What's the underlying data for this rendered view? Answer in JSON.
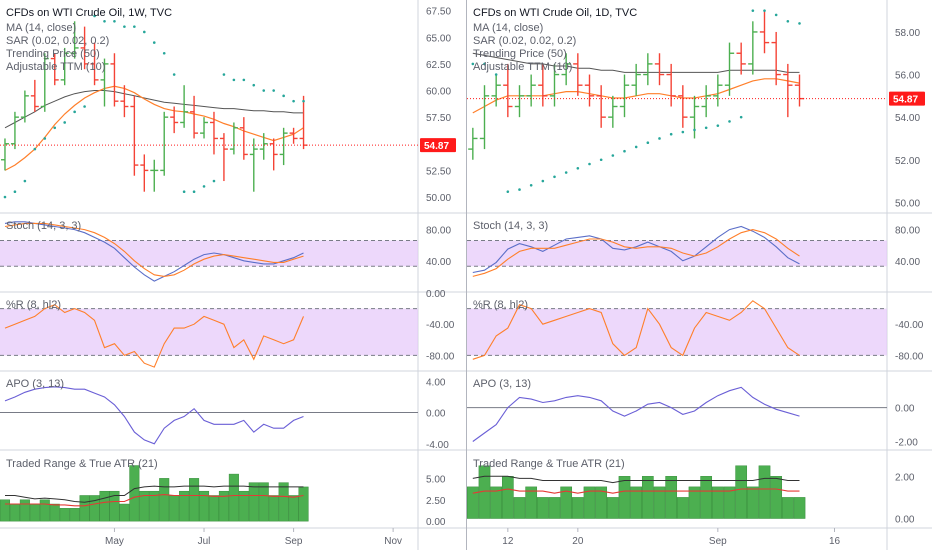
{
  "colors": {
    "up": "#4caf50",
    "down": "#f44336",
    "ma": "#ff7f2a",
    "trend": "#555555",
    "sar": "#26a69a",
    "stoch_k": "#5b6ec8",
    "stoch_d": "#ff7f2a",
    "band_fill": "#e6c8fa",
    "willr": "#ff7f2a",
    "apo": "#6a5fd6",
    "atr_bar": "#4caf50",
    "atr_line": "#e53935",
    "range_line": "#333333",
    "price_tag": "#ff1a1a",
    "grid": "#e0e3eb"
  },
  "current_price": "54.87",
  "chart_data": [
    {
      "type": "candlestick",
      "title": "CFDs on WTI Crude Oil, 1W, TVC",
      "legend": [
        "MA (14, close)",
        "SAR (0.02, 0.02, 0.2)",
        "Trending Price (50)",
        "Adjustable TTM (10)"
      ],
      "x_ticks": [
        {
          "label": "May",
          "i": 11
        },
        {
          "label": "Jul",
          "i": 20
        },
        {
          "label": "Sep",
          "i": 29
        },
        {
          "label": "Nov",
          "i": 39
        }
      ],
      "n_slots": 42,
      "price_ylim": [
        48.5,
        68.5
      ],
      "price_ticks": [
        "67.50",
        "65.00",
        "62.50",
        "60.00",
        "57.50",
        "55.00",
        "52.50",
        "50.00"
      ],
      "candles": [
        {
          "o": 53.5,
          "h": 55.5,
          "l": 52.5,
          "c": 55.0
        },
        {
          "o": 55.0,
          "h": 58.0,
          "l": 54.5,
          "c": 57.5
        },
        {
          "o": 57.5,
          "h": 60.0,
          "l": 57.0,
          "c": 59.5
        },
        {
          "o": 59.5,
          "h": 61.0,
          "l": 58.0,
          "c": 58.5
        },
        {
          "o": 58.5,
          "h": 63.5,
          "l": 58.0,
          "c": 63.0
        },
        {
          "o": 63.0,
          "h": 63.5,
          "l": 60.5,
          "c": 61.0
        },
        {
          "o": 61.0,
          "h": 64.0,
          "l": 60.5,
          "c": 63.5
        },
        {
          "o": 63.5,
          "h": 66.5,
          "l": 63.0,
          "c": 64.0
        },
        {
          "o": 64.0,
          "h": 66.0,
          "l": 62.0,
          "c": 62.5
        },
        {
          "o": 62.5,
          "h": 64.5,
          "l": 60.5,
          "c": 61.0
        },
        {
          "o": 61.0,
          "h": 63.0,
          "l": 58.5,
          "c": 62.5
        },
        {
          "o": 62.5,
          "h": 63.5,
          "l": 58.5,
          "c": 59.0
        },
        {
          "o": 59.0,
          "h": 60.5,
          "l": 57.5,
          "c": 58.5
        },
        {
          "o": 58.5,
          "h": 59.5,
          "l": 52.0,
          "c": 53.0
        },
        {
          "o": 53.0,
          "h": 54.0,
          "l": 50.5,
          "c": 52.5
        },
        {
          "o": 52.5,
          "h": 53.5,
          "l": 50.5,
          "c": 52.5
        },
        {
          "o": 52.5,
          "h": 58.0,
          "l": 52.0,
          "c": 57.5
        },
        {
          "o": 57.5,
          "h": 58.5,
          "l": 56.0,
          "c": 57.0
        },
        {
          "o": 57.0,
          "h": 60.5,
          "l": 56.5,
          "c": 58.0
        },
        {
          "o": 58.0,
          "h": 59.5,
          "l": 55.5,
          "c": 56.0
        },
        {
          "o": 56.0,
          "h": 57.5,
          "l": 55.5,
          "c": 57.0
        },
        {
          "o": 57.0,
          "h": 58.0,
          "l": 54.0,
          "c": 55.5
        },
        {
          "o": 55.5,
          "h": 56.0,
          "l": 51.5,
          "c": 54.5
        },
        {
          "o": 54.5,
          "h": 57.0,
          "l": 54.0,
          "c": 56.5
        },
        {
          "o": 56.5,
          "h": 57.5,
          "l": 53.5,
          "c": 54.0
        },
        {
          "o": 54.0,
          "h": 55.5,
          "l": 50.5,
          "c": 54.5
        },
        {
          "o": 54.5,
          "h": 56.0,
          "l": 53.5,
          "c": 55.0
        },
        {
          "o": 55.0,
          "h": 55.5,
          "l": 52.5,
          "c": 54.0
        },
        {
          "o": 54.0,
          "h": 56.5,
          "l": 53.0,
          "c": 56.0
        },
        {
          "o": 56.0,
          "h": 56.5,
          "l": 55.0,
          "c": 55.5
        },
        {
          "o": 55.5,
          "h": 59.5,
          "l": 54.5,
          "c": 54.87
        }
      ],
      "ma": [
        52.5,
        53.0,
        53.7,
        54.5,
        55.6,
        56.8,
        57.8,
        58.6,
        59.3,
        59.8,
        60.2,
        60.4,
        60.2,
        59.8,
        59.2,
        58.7,
        58.3,
        58.1,
        58.0,
        57.8,
        57.6,
        57.3,
        56.9,
        56.6,
        56.2,
        55.9,
        55.6,
        55.3,
        55.6,
        55.9,
        56.5
      ],
      "trend": [
        56.5,
        57.0,
        57.5,
        58.0,
        58.6,
        59.0,
        59.4,
        59.7,
        59.9,
        60.0,
        60.0,
        59.9,
        59.7,
        59.5,
        59.3,
        59.1,
        58.9,
        58.8,
        58.7,
        58.6,
        58.5,
        58.4,
        58.3,
        58.3,
        58.2,
        58.1,
        58.1,
        58.0,
        58.0,
        57.9,
        57.9
      ],
      "sar": [
        50.0,
        50.5,
        51.5,
        54.5,
        55.5,
        56.5,
        57.0,
        58.0,
        58.5,
        67.0,
        66.5,
        66.5,
        66.0,
        66.0,
        65.5,
        64.5,
        63.5,
        61.5,
        50.5,
        50.5,
        51.0,
        51.5,
        61.5,
        61.0,
        61.0,
        60.5,
        60.0,
        60.0,
        59.5,
        59.0,
        59.0
      ],
      "stoch_title": "Stoch (14, 3, 3)",
      "stoch_ylim": [
        0,
        100
      ],
      "stoch_ticks": [
        "80.00",
        "40.00"
      ],
      "stoch_band": [
        33,
        66
      ],
      "stoch_k": [
        88,
        90,
        90,
        88,
        86,
        84,
        82,
        80,
        76,
        70,
        64,
        56,
        44,
        32,
        22,
        14,
        20,
        26,
        34,
        42,
        48,
        50,
        48,
        44,
        40,
        38,
        36,
        36,
        40,
        44,
        50
      ],
      "stoch_d": [
        84,
        86,
        88,
        88,
        88,
        86,
        84,
        82,
        80,
        76,
        70,
        62,
        52,
        40,
        30,
        22,
        20,
        22,
        28,
        36,
        42,
        46,
        48,
        46,
        44,
        42,
        40,
        38,
        38,
        42,
        46
      ],
      "willr_title": "%R (8, hl2)",
      "willr_ylim": [
        -100,
        0
      ],
      "willr_ticks": [
        "0.00",
        "-40.00",
        "-80.00"
      ],
      "willr_band": [
        -80,
        -20
      ],
      "willr": [
        -45,
        -40,
        -35,
        -30,
        -20,
        -15,
        -25,
        -20,
        -25,
        -35,
        -70,
        -65,
        -80,
        -75,
        -90,
        -95,
        -65,
        -45,
        -45,
        -40,
        -30,
        -35,
        -40,
        -70,
        -60,
        -85,
        -55,
        -60,
        -65,
        -60,
        -30
      ],
      "apo_title": "APO (3, 13)",
      "apo_ylim": [
        -4.8,
        5.2
      ],
      "apo_ticks": [
        "4.00",
        "0.00",
        "-4.00"
      ],
      "apo_zero": 0,
      "apo": [
        1.5,
        2.0,
        2.6,
        3.0,
        3.2,
        3.3,
        3.2,
        3.0,
        3.0,
        2.5,
        2.0,
        1.0,
        -0.5,
        -2.5,
        -3.5,
        -4.0,
        -2.0,
        -1.0,
        -0.5,
        0.5,
        -1.0,
        -1.5,
        -1.5,
        -1.5,
        -1.0,
        -2.5,
        -1.5,
        -2.0,
        -2.0,
        -1.0,
        -0.5
      ],
      "atr_title": "Traded Range & True ATR (21)",
      "atr_ylim": [
        -0.8,
        8.2
      ],
      "atr_ticks": [
        "5.00",
        "2.50",
        "0.00"
      ],
      "atr_bars": [
        2.5,
        2.0,
        2.5,
        2.0,
        2.5,
        2.0,
        1.5,
        1.5,
        3.0,
        3.0,
        3.5,
        3.5,
        2.0,
        6.5,
        3.5,
        3.5,
        5.0,
        3.0,
        3.5,
        5.0,
        3.5,
        3.0,
        3.5,
        5.5,
        3.5,
        4.5,
        4.5,
        3.0,
        4.5,
        3.0,
        4.0
      ],
      "range_line": [
        3.0,
        3.0,
        2.8,
        2.6,
        2.7,
        2.6,
        2.5,
        2.3,
        2.2,
        2.4,
        2.7,
        3.0,
        3.0,
        3.8,
        4.0,
        4.1,
        4.0,
        4.0,
        4.1,
        4.1,
        4.1,
        4.0,
        4.1,
        4.1,
        4.1,
        4.0,
        4.0,
        4.0,
        4.0,
        4.0,
        4.0
      ],
      "atr_line": [
        2.0,
        2.0,
        2.0,
        2.0,
        2.0,
        1.9,
        1.9,
        1.8,
        1.8,
        2.0,
        2.2,
        2.3,
        2.3,
        2.8,
        3.0,
        3.0,
        3.1,
        3.0,
        3.0,
        3.0,
        3.0,
        2.9,
        2.9,
        3.0,
        3.0,
        3.0,
        3.0,
        2.9,
        2.9,
        2.8,
        3.0
      ]
    },
    {
      "type": "candlestick",
      "title": "CFDs on WTI Crude Oil, 1D, TVC",
      "legend": [
        "MA (14, close)",
        "SAR (0.02, 0.02, 0.2)",
        "Trending Price (50)",
        "Adjustable TTM (10)"
      ],
      "x_ticks": [
        {
          "label": "12",
          "i": 3
        },
        {
          "label": "20",
          "i": 9
        },
        {
          "label": "Sep",
          "i": 21
        },
        {
          "label": "16",
          "i": 31
        }
      ],
      "n_slots": 36,
      "price_ylim": [
        49.5,
        59.5
      ],
      "price_ticks": [
        "58.00",
        "56.00",
        "54.00",
        "52.00",
        "50.00"
      ],
      "candles": [
        {
          "o": 52.5,
          "h": 53.5,
          "l": 52.0,
          "c": 53.0
        },
        {
          "o": 53.0,
          "h": 55.5,
          "l": 52.5,
          "c": 55.0
        },
        {
          "o": 55.0,
          "h": 56.0,
          "l": 54.5,
          "c": 55.5
        },
        {
          "o": 55.5,
          "h": 56.5,
          "l": 54.0,
          "c": 54.5
        },
        {
          "o": 54.5,
          "h": 55.5,
          "l": 54.0,
          "c": 55.0
        },
        {
          "o": 55.0,
          "h": 56.0,
          "l": 54.5,
          "c": 55.5
        },
        {
          "o": 55.5,
          "h": 56.5,
          "l": 54.5,
          "c": 55.0
        },
        {
          "o": 55.0,
          "h": 56.5,
          "l": 54.5,
          "c": 56.0
        },
        {
          "o": 56.0,
          "h": 57.0,
          "l": 55.5,
          "c": 56.5
        },
        {
          "o": 56.5,
          "h": 57.0,
          "l": 55.0,
          "c": 55.5
        },
        {
          "o": 55.5,
          "h": 56.0,
          "l": 54.5,
          "c": 55.0
        },
        {
          "o": 55.0,
          "h": 55.5,
          "l": 53.5,
          "c": 54.0
        },
        {
          "o": 54.0,
          "h": 55.0,
          "l": 53.5,
          "c": 54.5
        },
        {
          "o": 54.5,
          "h": 56.0,
          "l": 54.0,
          "c": 55.5
        },
        {
          "o": 55.5,
          "h": 56.5,
          "l": 55.0,
          "c": 56.0
        },
        {
          "o": 56.0,
          "h": 57.0,
          "l": 55.5,
          "c": 56.5
        },
        {
          "o": 56.5,
          "h": 57.0,
          "l": 55.5,
          "c": 56.0
        },
        {
          "o": 56.0,
          "h": 56.5,
          "l": 54.5,
          "c": 55.0
        },
        {
          "o": 55.0,
          "h": 55.5,
          "l": 53.5,
          "c": 54.0
        },
        {
          "o": 54.0,
          "h": 55.0,
          "l": 53.0,
          "c": 54.5
        },
        {
          "o": 54.5,
          "h": 55.5,
          "l": 54.0,
          "c": 55.0
        },
        {
          "o": 55.0,
          "h": 56.0,
          "l": 54.5,
          "c": 55.5
        },
        {
          "o": 55.5,
          "h": 57.5,
          "l": 55.0,
          "c": 57.0
        },
        {
          "o": 57.0,
          "h": 57.5,
          "l": 56.0,
          "c": 56.5
        },
        {
          "o": 56.5,
          "h": 58.5,
          "l": 56.0,
          "c": 58.0
        },
        {
          "o": 58.0,
          "h": 59.0,
          "l": 57.0,
          "c": 57.5
        },
        {
          "o": 57.5,
          "h": 58.0,
          "l": 55.5,
          "c": 56.0
        },
        {
          "o": 56.0,
          "h": 56.5,
          "l": 54.0,
          "c": 55.5
        },
        {
          "o": 55.5,
          "h": 56.0,
          "l": 54.5,
          "c": 54.87
        }
      ],
      "ma": [
        54.2,
        54.5,
        54.8,
        55.0,
        55.0,
        55.0,
        55.0,
        55.1,
        55.2,
        55.2,
        55.1,
        55.0,
        54.9,
        54.9,
        55.0,
        55.1,
        55.1,
        55.0,
        54.9,
        54.9,
        55.0,
        55.1,
        55.3,
        55.5,
        55.7,
        55.8,
        55.8,
        55.7,
        55.6
      ],
      "trend": [
        57.0,
        56.9,
        56.8,
        56.7,
        56.6,
        56.5,
        56.5,
        56.4,
        56.4,
        56.3,
        56.3,
        56.2,
        56.2,
        56.1,
        56.1,
        56.1,
        56.1,
        56.1,
        56.1,
        56.1,
        56.1,
        56.1,
        56.2,
        56.2,
        56.2,
        56.2,
        56.2,
        56.1,
        56.1
      ],
      "sar": [
        56.5,
        56.5,
        56.0,
        50.5,
        50.6,
        50.8,
        51.0,
        51.2,
        51.4,
        51.6,
        51.8,
        52.0,
        52.2,
        52.4,
        52.6,
        52.8,
        53.0,
        53.2,
        53.3,
        53.4,
        53.5,
        53.6,
        53.8,
        54.0,
        59.0,
        59.0,
        58.8,
        58.5,
        58.4
      ],
      "stoch_title": "Stoch (14, 3, 3)",
      "stoch_ylim": [
        0,
        100
      ],
      "stoch_ticks": [
        "80.00",
        "40.00"
      ],
      "stoch_band": [
        33,
        66
      ],
      "stoch_k": [
        25,
        28,
        38,
        55,
        62,
        58,
        52,
        60,
        68,
        70,
        72,
        68,
        56,
        54,
        58,
        64,
        58,
        52,
        40,
        46,
        58,
        70,
        80,
        84,
        78,
        70,
        58,
        44,
        36
      ],
      "stoch_d": [
        20,
        24,
        30,
        42,
        52,
        56,
        56,
        56,
        60,
        64,
        68,
        68,
        64,
        58,
        56,
        58,
        58,
        56,
        50,
        46,
        50,
        58,
        68,
        76,
        80,
        76,
        68,
        56,
        46
      ],
      "willr_title": "%R (8, hl2)",
      "willr_ylim": [
        -100,
        0
      ],
      "willr_ticks": [
        "-40.00",
        "-80.00"
      ],
      "willr_band": [
        -80,
        -20
      ],
      "willr": [
        -85,
        -80,
        -55,
        -45,
        -15,
        -20,
        -40,
        -35,
        -30,
        -25,
        -20,
        -25,
        -65,
        -80,
        -70,
        -20,
        -40,
        -70,
        -80,
        -45,
        -25,
        -30,
        -35,
        -25,
        -10,
        -20,
        -45,
        -70,
        -80
      ],
      "apo_title": "APO (3, 13)",
      "apo_ylim": [
        -2.5,
        2.1
      ],
      "apo_ticks": [
        "0.00",
        "-2.00"
      ],
      "apo_zero": 0,
      "apo": [
        -2.0,
        -1.5,
        -1.0,
        0.0,
        0.6,
        0.5,
        0.3,
        0.4,
        0.6,
        0.7,
        0.6,
        0.4,
        -0.2,
        -0.5,
        -0.2,
        0.2,
        0.3,
        0.0,
        -0.4,
        -0.2,
        0.3,
        0.7,
        1.0,
        1.2,
        0.6,
        0.2,
        -0.1,
        -0.3,
        -0.5
      ],
      "atr_title": "Traded Range & True ATR (21)",
      "atr_ylim": [
        -0.45,
        3.2
      ],
      "atr_ticks": [
        "2.00",
        "0.00"
      ],
      "atr_bars": [
        1.5,
        2.5,
        1.5,
        2.0,
        1.0,
        1.5,
        1.0,
        1.0,
        1.5,
        1.0,
        1.5,
        1.5,
        1.0,
        2.0,
        1.5,
        2.0,
        1.5,
        2.0,
        1.0,
        1.5,
        2.0,
        1.5,
        1.5,
        2.5,
        1.5,
        2.5,
        2.0,
        1.0,
        1.0
      ],
      "range_line": [
        1.9,
        2.0,
        2.0,
        2.0,
        1.9,
        1.9,
        1.8,
        1.8,
        1.8,
        1.8,
        1.8,
        1.8,
        1.7,
        1.8,
        1.8,
        1.8,
        1.8,
        1.8,
        1.8,
        1.8,
        1.8,
        1.8,
        1.8,
        1.8,
        1.8,
        1.9,
        1.9,
        1.8,
        1.8
      ],
      "atr_line": [
        1.2,
        1.3,
        1.3,
        1.4,
        1.3,
        1.3,
        1.3,
        1.2,
        1.3,
        1.2,
        1.3,
        1.3,
        1.2,
        1.3,
        1.3,
        1.3,
        1.3,
        1.3,
        1.3,
        1.3,
        1.3,
        1.3,
        1.3,
        1.4,
        1.4,
        1.4,
        1.4,
        1.3,
        1.3
      ]
    }
  ]
}
